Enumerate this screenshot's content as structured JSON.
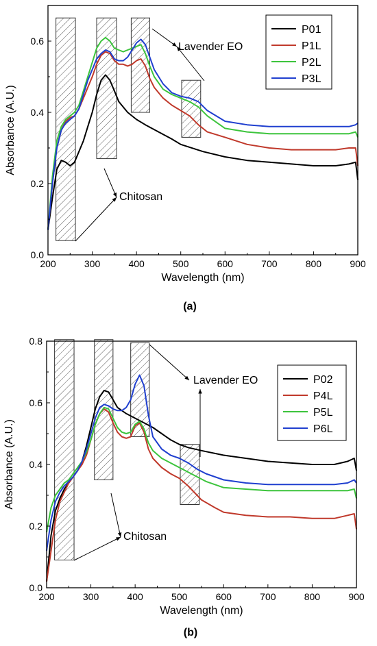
{
  "panels": [
    {
      "caption": "(a)",
      "chart_data": {
        "type": "line",
        "xlabel": "Wavelength (nm)",
        "ylabel": "Absorbance (A.U.)",
        "xlim": [
          200,
          900
        ],
        "ylim": [
          0.0,
          0.7
        ],
        "xticks": [
          200,
          300,
          400,
          500,
          600,
          700,
          800,
          900
        ],
        "yticks": [
          0.0,
          0.2,
          0.4,
          0.6
        ],
        "ytick_labels": [
          "0.0",
          "0.2",
          "0.4",
          "0.6"
        ],
        "grid": false,
        "legend_position": "top-right",
        "series": [
          {
            "name": "P01",
            "color": "#000000",
            "x": [
              200,
              210,
              220,
              230,
              240,
              250,
              260,
              270,
              280,
              290,
              300,
              310,
              320,
              330,
              340,
              350,
              360,
              380,
              400,
              420,
              450,
              480,
              500,
              550,
              600,
              650,
              700,
              750,
              800,
              850,
              880,
              895,
              900
            ],
            "y": [
              0.07,
              0.16,
              0.24,
              0.265,
              0.26,
              0.25,
              0.26,
              0.29,
              0.32,
              0.36,
              0.4,
              0.45,
              0.49,
              0.505,
              0.49,
              0.46,
              0.43,
              0.4,
              0.38,
              0.365,
              0.345,
              0.325,
              0.31,
              0.29,
              0.275,
              0.265,
              0.26,
              0.255,
              0.25,
              0.25,
              0.255,
              0.26,
              0.21
            ]
          },
          {
            "name": "P1L",
            "color": "#c0392b",
            "x": [
              200,
              210,
              220,
              230,
              240,
              250,
              260,
              270,
              280,
              290,
              300,
              310,
              320,
              330,
              340,
              350,
              360,
              370,
              380,
              390,
              400,
              410,
              420,
              430,
              440,
              460,
              480,
              500,
              520,
              540,
              560,
              600,
              650,
              700,
              750,
              800,
              850,
              880,
              895,
              900
            ],
            "y": [
              0.07,
              0.2,
              0.3,
              0.35,
              0.375,
              0.385,
              0.39,
              0.41,
              0.44,
              0.47,
              0.5,
              0.535,
              0.56,
              0.57,
              0.565,
              0.545,
              0.535,
              0.535,
              0.53,
              0.535,
              0.545,
              0.55,
              0.53,
              0.495,
              0.47,
              0.44,
              0.42,
              0.405,
              0.39,
              0.365,
              0.345,
              0.33,
              0.31,
              0.3,
              0.295,
              0.295,
              0.295,
              0.3,
              0.3,
              0.25
            ]
          },
          {
            "name": "P2L",
            "color": "#3cc43c",
            "x": [
              200,
              210,
              220,
              230,
              240,
              250,
              260,
              270,
              280,
              290,
              300,
              310,
              320,
              330,
              340,
              350,
              360,
              370,
              380,
              390,
              400,
              410,
              420,
              430,
              440,
              460,
              480,
              500,
              520,
              540,
              560,
              600,
              650,
              700,
              750,
              800,
              850,
              880,
              895,
              900
            ],
            "y": [
              0.07,
              0.22,
              0.32,
              0.36,
              0.38,
              0.39,
              0.4,
              0.42,
              0.46,
              0.5,
              0.54,
              0.58,
              0.6,
              0.61,
              0.6,
              0.58,
              0.575,
              0.57,
              0.575,
              0.58,
              0.585,
              0.59,
              0.565,
              0.53,
              0.5,
              0.465,
              0.45,
              0.44,
              0.43,
              0.415,
              0.39,
              0.355,
              0.345,
              0.34,
              0.34,
              0.34,
              0.34,
              0.34,
              0.345,
              0.33
            ]
          },
          {
            "name": "P3L",
            "color": "#1f3fcf",
            "x": [
              200,
              210,
              220,
              230,
              240,
              250,
              260,
              270,
              280,
              290,
              300,
              310,
              320,
              330,
              340,
              350,
              360,
              370,
              380,
              390,
              400,
              410,
              420,
              430,
              440,
              460,
              480,
              500,
              520,
              540,
              560,
              600,
              650,
              700,
              750,
              800,
              850,
              880,
              895,
              900
            ],
            "y": [
              0.07,
              0.2,
              0.3,
              0.35,
              0.37,
              0.38,
              0.39,
              0.41,
              0.45,
              0.49,
              0.52,
              0.55,
              0.565,
              0.575,
              0.57,
              0.55,
              0.545,
              0.545,
              0.555,
              0.575,
              0.595,
              0.605,
              0.59,
              0.555,
              0.52,
              0.48,
              0.455,
              0.445,
              0.44,
              0.43,
              0.405,
              0.375,
              0.365,
              0.36,
              0.36,
              0.36,
              0.36,
              0.36,
              0.365,
              0.37
            ]
          }
        ],
        "boxes": [
          {
            "x": [
              218,
              262
            ],
            "y": [
              0.04,
              0.665
            ]
          },
          {
            "x": [
              310,
              355
            ],
            "y": [
              0.27,
              0.665
            ]
          },
          {
            "x": [
              388,
              430
            ],
            "y": [
              0.4,
              0.665
            ]
          },
          {
            "x": [
              502,
              545
            ],
            "y": [
              0.33,
              0.49
            ]
          }
        ],
        "annotations": [
          {
            "text": "Lavender EO",
            "x": 555,
            "y": 0.575
          },
          {
            "text": "Chitosan",
            "x": 335,
            "y": 0.155
          }
        ]
      }
    },
    {
      "caption": "(b)",
      "chart_data": {
        "type": "line",
        "xlabel": "Wavelength (nm)",
        "ylabel": "Absorbance (A.U.)",
        "xlim": [
          200,
          900
        ],
        "ylim": [
          0.0,
          0.8
        ],
        "xticks": [
          200,
          300,
          400,
          500,
          600,
          700,
          800,
          900
        ],
        "yticks": [
          0.0,
          0.2,
          0.4,
          0.6,
          0.8
        ],
        "ytick_labels": [
          "0.0",
          "0.2",
          "0.4",
          "0.6",
          "0.8"
        ],
        "grid": false,
        "legend_position": "top-right",
        "series": [
          {
            "name": "P02",
            "color": "#000000",
            "x": [
              200,
              210,
              220,
              230,
              240,
              250,
              260,
              270,
              280,
              290,
              300,
              310,
              320,
              330,
              340,
              350,
              360,
              380,
              400,
              420,
              440,
              460,
              480,
              500,
              520,
              550,
              600,
              650,
              700,
              750,
              800,
              850,
              880,
              895,
              900
            ],
            "y": [
              0.02,
              0.17,
              0.25,
              0.29,
              0.32,
              0.34,
              0.36,
              0.38,
              0.41,
              0.46,
              0.52,
              0.58,
              0.62,
              0.64,
              0.635,
              0.61,
              0.585,
              0.565,
              0.55,
              0.535,
              0.52,
              0.5,
              0.48,
              0.465,
              0.455,
              0.445,
              0.43,
              0.42,
              0.41,
              0.405,
              0.4,
              0.4,
              0.41,
              0.42,
              0.38
            ]
          },
          {
            "name": "P4L",
            "color": "#c0392b",
            "x": [
              200,
              210,
              220,
              230,
              240,
              250,
              260,
              270,
              280,
              290,
              300,
              310,
              320,
              330,
              340,
              350,
              360,
              370,
              380,
              390,
              400,
              410,
              420,
              430,
              440,
              460,
              480,
              500,
              520,
              540,
              550,
              580,
              600,
              650,
              700,
              750,
              800,
              850,
              880,
              895,
              900
            ],
            "y": [
              0.02,
              0.12,
              0.22,
              0.28,
              0.31,
              0.34,
              0.36,
              0.38,
              0.4,
              0.43,
              0.48,
              0.53,
              0.565,
              0.58,
              0.57,
              0.535,
              0.505,
              0.49,
              0.485,
              0.49,
              0.525,
              0.535,
              0.505,
              0.45,
              0.42,
              0.39,
              0.37,
              0.355,
              0.33,
              0.3,
              0.285,
              0.26,
              0.245,
              0.235,
              0.23,
              0.23,
              0.225,
              0.225,
              0.235,
              0.24,
              0.19
            ]
          },
          {
            "name": "P5L",
            "color": "#3cc43c",
            "x": [
              200,
              210,
              220,
              230,
              240,
              250,
              260,
              270,
              280,
              290,
              300,
              310,
              320,
              330,
              340,
              350,
              360,
              370,
              380,
              390,
              400,
              410,
              420,
              430,
              440,
              460,
              480,
              500,
              520,
              540,
              560,
              600,
              650,
              700,
              750,
              800,
              850,
              880,
              895,
              900
            ],
            "y": [
              0.18,
              0.26,
              0.3,
              0.32,
              0.34,
              0.35,
              0.37,
              0.39,
              0.41,
              0.44,
              0.48,
              0.53,
              0.565,
              0.585,
              0.58,
              0.55,
              0.52,
              0.505,
              0.5,
              0.505,
              0.53,
              0.54,
              0.515,
              0.47,
              0.445,
              0.42,
              0.405,
              0.39,
              0.375,
              0.36,
              0.345,
              0.325,
              0.32,
              0.315,
              0.315,
              0.315,
              0.315,
              0.315,
              0.32,
              0.29
            ]
          },
          {
            "name": "P6L",
            "color": "#1f3fcf",
            "x": [
              200,
              210,
              220,
              230,
              240,
              250,
              260,
              270,
              280,
              290,
              300,
              310,
              320,
              330,
              340,
              350,
              360,
              370,
              380,
              390,
              400,
              410,
              420,
              430,
              440,
              460,
              480,
              500,
              520,
              540,
              560,
              600,
              650,
              700,
              750,
              800,
              850,
              880,
              895,
              900
            ],
            "y": [
              0.12,
              0.22,
              0.28,
              0.31,
              0.33,
              0.345,
              0.36,
              0.38,
              0.41,
              0.45,
              0.5,
              0.55,
              0.585,
              0.595,
              0.59,
              0.58,
              0.575,
              0.575,
              0.585,
              0.61,
              0.66,
              0.69,
              0.655,
              0.56,
              0.49,
              0.45,
              0.43,
              0.42,
              0.405,
              0.385,
              0.37,
              0.35,
              0.34,
              0.335,
              0.335,
              0.335,
              0.335,
              0.34,
              0.35,
              0.34
            ]
          }
        ],
        "boxes": [
          {
            "x": [
              218,
              262
            ],
            "y": [
              0.09,
              0.805
            ]
          },
          {
            "x": [
              308,
              350
            ],
            "y": [
              0.35,
              0.805
            ]
          },
          {
            "x": [
              390,
              432
            ],
            "y": [
              0.49,
              0.795
            ]
          },
          {
            "x": [
              502,
              545
            ],
            "y": [
              0.27,
              0.465
            ]
          }
        ],
        "annotations": [
          {
            "text": "Lavender EO",
            "x": 560,
            "y": 0.68
          },
          {
            "text": "Chitosan",
            "x": 340,
            "y": 0.165
          }
        ]
      }
    }
  ]
}
